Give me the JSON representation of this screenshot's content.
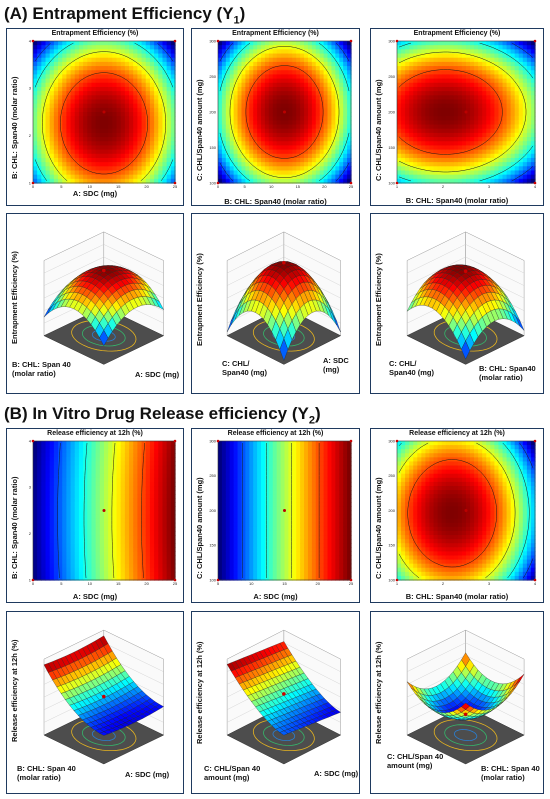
{
  "section_a": {
    "prefix": "(A) Entrapment Efficiency (Y",
    "sub": "1",
    "suffix": ")"
  },
  "section_b": {
    "prefix": "(B) In Vitro Drug Release efficiency (Y",
    "sub": "2",
    "suffix": ")"
  },
  "chart_data": [
    {
      "type": "heatmap",
      "title": "Entrapment Efficiency (%)",
      "xlabel": "A: SDC (mg)",
      "ylabel": "B: CHL: Span40 (molar ratio)",
      "xlim": [
        0,
        25
      ],
      "ylim": [
        1,
        4
      ],
      "xticks": [
        "0",
        "5",
        "10",
        "15",
        "20",
        "25"
      ],
      "yticks": [
        "1",
        "2",
        "3",
        "4"
      ],
      "colormap": "jet"
    },
    {
      "type": "heatmap",
      "title": "Entrapment Efficiency (%)",
      "xlabel": "B: CHL: Span40 (molar ratio)",
      "ylabel": "C: CHL/Span40 amount (mg)",
      "xlim": [
        0,
        25
      ],
      "ylim": [
        100,
        300
      ],
      "xticks": [
        "0",
        "5",
        "10",
        "15",
        "20",
        "25"
      ],
      "yticks": [
        "100",
        "150",
        "200",
        "250",
        "300"
      ],
      "colormap": "jet"
    },
    {
      "type": "heatmap",
      "title": "Entrapment Efficiency (%)",
      "xlabel": "B: CHL: Span40 (molar ratio)",
      "ylabel": "C: CHL/Span40 amount (mg)",
      "xlim": [
        1,
        4
      ],
      "ylim": [
        100,
        300
      ],
      "xticks": [
        "1",
        "2",
        "3",
        "4"
      ],
      "yticks": [
        "100",
        "150",
        "200",
        "250",
        "300"
      ],
      "colormap": "jet"
    },
    {
      "type": "surface",
      "ylabel": "Entrapment Efficiency (%)",
      "xlabel": "A: SDC (mg)",
      "zlabel": "B: CHL: Span 40 (molar ratio)"
    },
    {
      "type": "surface",
      "ylabel": "Entrapment Efficiency (%)",
      "xlabel": "A: SDC (mg)",
      "zlabel": "C: CHL/ Span40 (mg)"
    },
    {
      "type": "surface",
      "ylabel": "Entrapment Efficiency (%)",
      "xlabel": "B: CHL: Span40 (molar ratio)",
      "zlabel": "C: CHL/ Span40 (mg)"
    },
    {
      "type": "heatmap",
      "title": "Release efficiency at 12h (%)",
      "xlabel": "A: SDC (mg)",
      "ylabel": "B: CHL: Span40 (molar ratio)",
      "xlim": [
        0,
        25
      ],
      "ylim": [
        1,
        4
      ],
      "xticks": [
        "0",
        "5",
        "10",
        "15",
        "20",
        "25"
      ],
      "yticks": [
        "1",
        "2",
        "3",
        "4"
      ],
      "colormap": "jet"
    },
    {
      "type": "heatmap",
      "title": "Release efficiency at 12h (%)",
      "xlabel": "A: SDC (mg)",
      "ylabel": "C: CHL/Span40 amount (mg)",
      "xlim": [
        5,
        25
      ],
      "ylim": [
        100,
        300
      ],
      "xticks": [
        "5",
        "10",
        "15",
        "20",
        "25"
      ],
      "yticks": [
        "100",
        "150",
        "200",
        "250",
        "300"
      ],
      "colormap": "jet"
    },
    {
      "type": "heatmap",
      "title": "Release efficiency at 12h (%)",
      "xlabel": "B: CHL: Span40 (molar ratio)",
      "ylabel": "C: CHL/Span40 amount (mg)",
      "xlim": [
        1,
        4
      ],
      "ylim": [
        100,
        300
      ],
      "xticks": [
        "1",
        "2",
        "3",
        "4"
      ],
      "yticks": [
        "100",
        "150",
        "200",
        "250",
        "300"
      ],
      "colormap": "jet"
    },
    {
      "type": "surface",
      "ylabel": "Release efficiency at 12h (%)",
      "xlabel": "A: SDC (mg)",
      "zlabel": "B: CHL: Span 40 (molar ratio)"
    },
    {
      "type": "surface",
      "ylabel": "Release efficiency at 12h (%)",
      "xlabel": "A: SDC (mg)",
      "zlabel": "C: CHL/Span 40 amount (mg)"
    },
    {
      "type": "surface",
      "ylabel": "Release efficiency at 12h (%)",
      "xlabel": "B: CHL: Span 40 (molar ratio)",
      "zlabel": "C: CHL/Span 40 amount (mg)"
    }
  ]
}
